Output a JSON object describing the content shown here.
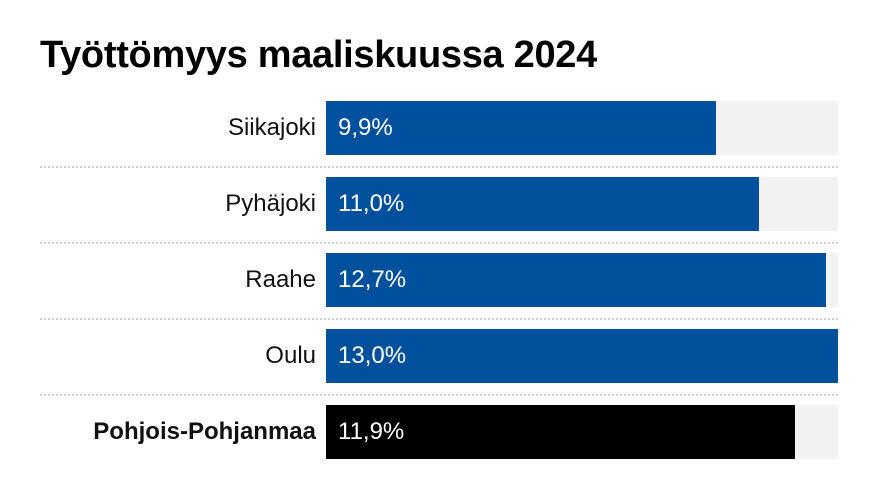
{
  "chart_data": {
    "type": "bar",
    "orientation": "horizontal",
    "title": "Työttömyys maaliskuussa 2024",
    "categories": [
      "Siikajoki",
      "Pyhäjoki",
      "Raahe",
      "Oulu",
      "Pohjois-Pohjanmaa"
    ],
    "values": [
      9.9,
      11.0,
      12.7,
      13.0,
      11.9
    ],
    "value_labels": [
      "9,9%",
      "11,0%",
      "12,7%",
      "13,0%",
      "11,9%"
    ],
    "highlight_index": 4,
    "xlim": [
      0,
      13.0
    ],
    "grid": false,
    "legend": "none",
    "colors": {
      "bar": "#00509e",
      "highlight": "#000000",
      "track": "#f2f2f2",
      "value_text": "#ffffff"
    }
  }
}
